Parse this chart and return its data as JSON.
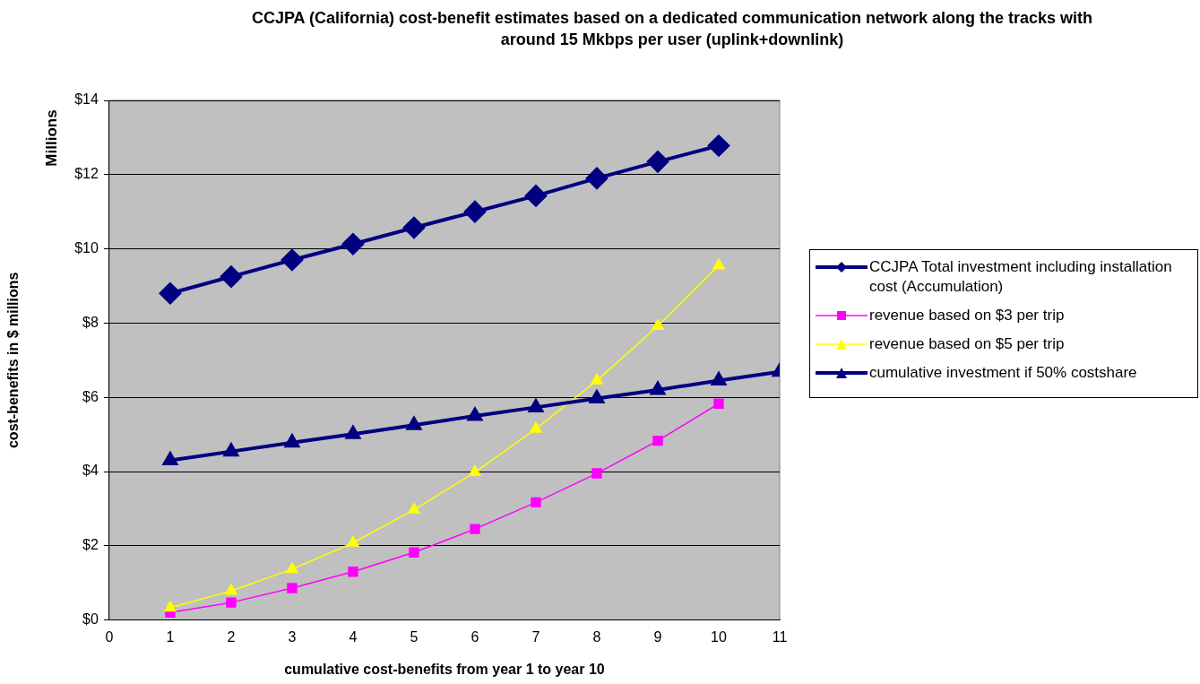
{
  "chart_data": {
    "type": "line",
    "title": "CCJPA (California) cost-benefit estimates based on a dedicated communication network along the tracks with around  15 Mkbps per user (uplink+downlink)",
    "xlabel": "cumulative cost-benefits from year 1 to year 10",
    "ylabel": "cost-benefits in $ millions",
    "annotations": [
      "Millions"
    ],
    "x": [
      1,
      2,
      3,
      4,
      5,
      6,
      7,
      8,
      9,
      10
    ],
    "series": [
      {
        "name": "CCJPA Total investment including installation cost (Accumulation)",
        "color": "#000080",
        "marker": "diamond",
        "values": [
          8.8,
          9.25,
          9.7,
          10.13,
          10.57,
          11.0,
          11.43,
          11.9,
          12.35,
          12.78
        ]
      },
      {
        "name": "revenue based on $3 per trip",
        "color": "#ff00ff",
        "marker": "square",
        "values": [
          0.2,
          0.47,
          0.86,
          1.3,
          1.82,
          2.45,
          3.17,
          3.95,
          4.83,
          5.83
        ]
      },
      {
        "name": "revenue based on $5 per trip",
        "color": "#ffff00",
        "marker": "triangle",
        "values": [
          0.33,
          0.78,
          1.37,
          2.08,
          2.97,
          3.98,
          5.15,
          6.45,
          7.92,
          9.55
        ]
      },
      {
        "name": "cumulative investment if 50% costshare",
        "color": "#000080",
        "marker": "triangle",
        "x": [
          1,
          2,
          3,
          4,
          5,
          6,
          7,
          8,
          9,
          10,
          11
        ],
        "values": [
          4.3,
          4.54,
          4.78,
          5.01,
          5.25,
          5.5,
          5.73,
          5.97,
          6.2,
          6.45,
          6.69
        ]
      }
    ],
    "xlim": [
      0,
      11
    ],
    "xticks": [
      0,
      1,
      2,
      3,
      4,
      5,
      6,
      7,
      8,
      9,
      10,
      11
    ],
    "ylim": [
      0,
      14
    ],
    "yticks": [
      {
        "value": 0,
        "label": "$0"
      },
      {
        "value": 2,
        "label": "$2"
      },
      {
        "value": 4,
        "label": "$4"
      },
      {
        "value": 6,
        "label": "$6"
      },
      {
        "value": 8,
        "label": "$8"
      },
      {
        "value": 10,
        "label": "$10"
      },
      {
        "value": 12,
        "label": "$12"
      },
      {
        "value": 14,
        "label": "$14"
      }
    ],
    "grid": "y",
    "legend": "right"
  }
}
